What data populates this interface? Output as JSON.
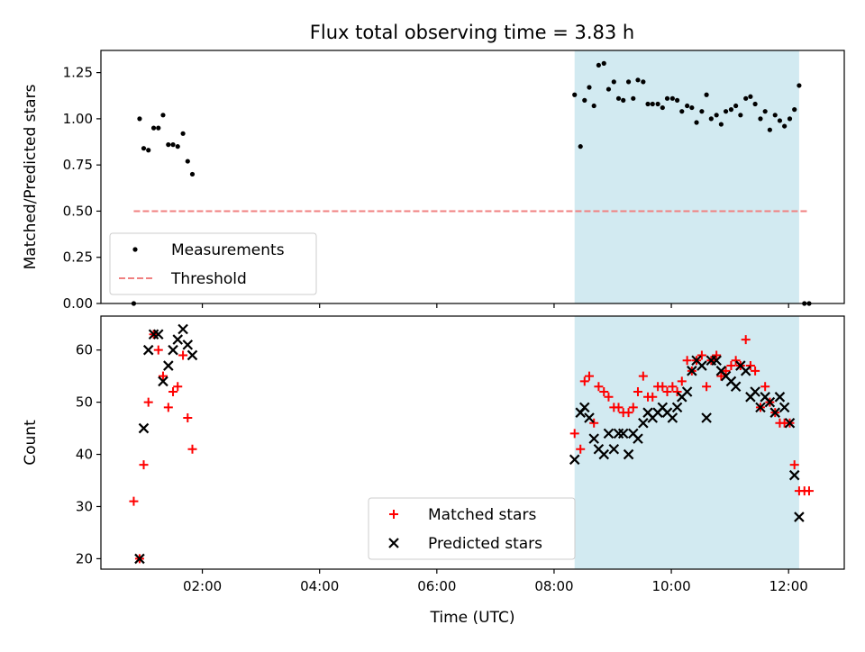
{
  "chart_data": [
    {
      "type": "scatter",
      "title": "Flux total observing time = 3.83 h",
      "xlabel": "",
      "ylabel": "Matched/Predicted stars",
      "x_unit": "hours UTC",
      "xlim": [
        0.27,
        12.95
      ],
      "ylim": [
        0,
        1.37
      ],
      "y_ticks": [
        "0.00",
        "0.25",
        "0.50",
        "0.75",
        "1.00",
        "1.25"
      ],
      "legend_position": "lower-left",
      "shaded_interval": {
        "x": [
          8.35,
          12.18
        ],
        "color": "#add8e6"
      },
      "series": [
        {
          "name": "Measurements",
          "color": "#000000",
          "marker": "dot",
          "points": [
            [
              0.83,
              0.0
            ],
            [
              0.93,
              1.0
            ],
            [
              1.0,
              0.84
            ],
            [
              1.08,
              0.83
            ],
            [
              1.17,
              0.95
            ],
            [
              1.25,
              0.95
            ],
            [
              1.33,
              1.02
            ],
            [
              1.42,
              0.86
            ],
            [
              1.5,
              0.86
            ],
            [
              1.58,
              0.85
            ],
            [
              1.67,
              0.92
            ],
            [
              1.75,
              0.77
            ],
            [
              1.83,
              0.7
            ],
            [
              8.35,
              1.13
            ],
            [
              8.45,
              0.85
            ],
            [
              8.52,
              1.1
            ],
            [
              8.6,
              1.17
            ],
            [
              8.68,
              1.07
            ],
            [
              8.76,
              1.29
            ],
            [
              8.85,
              1.3
            ],
            [
              8.93,
              1.16
            ],
            [
              9.02,
              1.2
            ],
            [
              9.1,
              1.11
            ],
            [
              9.18,
              1.1
            ],
            [
              9.27,
              1.2
            ],
            [
              9.35,
              1.11
            ],
            [
              9.43,
              1.21
            ],
            [
              9.52,
              1.2
            ],
            [
              9.6,
              1.08
            ],
            [
              9.68,
              1.08
            ],
            [
              9.77,
              1.08
            ],
            [
              9.85,
              1.06
            ],
            [
              9.93,
              1.11
            ],
            [
              10.02,
              1.11
            ],
            [
              10.1,
              1.1
            ],
            [
              10.18,
              1.04
            ],
            [
              10.27,
              1.07
            ],
            [
              10.35,
              1.06
            ],
            [
              10.43,
              0.98
            ],
            [
              10.52,
              1.04
            ],
            [
              10.6,
              1.13
            ],
            [
              10.68,
              1.0
            ],
            [
              10.77,
              1.02
            ],
            [
              10.85,
              0.97
            ],
            [
              10.93,
              1.04
            ],
            [
              11.02,
              1.05
            ],
            [
              11.1,
              1.07
            ],
            [
              11.18,
              1.02
            ],
            [
              11.27,
              1.11
            ],
            [
              11.35,
              1.12
            ],
            [
              11.43,
              1.08
            ],
            [
              11.52,
              1.0
            ],
            [
              11.6,
              1.04
            ],
            [
              11.68,
              0.94
            ],
            [
              11.77,
              1.02
            ],
            [
              11.85,
              0.99
            ],
            [
              11.93,
              0.96
            ],
            [
              12.02,
              1.0
            ],
            [
              12.1,
              1.05
            ],
            [
              12.18,
              1.18
            ],
            [
              12.27,
              0.0
            ],
            [
              12.35,
              0.0
            ]
          ]
        },
        {
          "name": "Threshold",
          "color": "#f08080",
          "style": "dashed",
          "points": [
            [
              0.83,
              0.5
            ],
            [
              12.35,
              0.5
            ]
          ]
        }
      ]
    },
    {
      "type": "scatter",
      "title": "",
      "xlabel": "Time (UTC)",
      "ylabel": "Count",
      "x_unit": "hours UTC",
      "xlim": [
        0.27,
        12.95
      ],
      "ylim": [
        18,
        66.5
      ],
      "x_ticks": [
        {
          "value": 2,
          "label": "02:00"
        },
        {
          "value": 4,
          "label": "04:00"
        },
        {
          "value": 6,
          "label": "06:00"
        },
        {
          "value": 8,
          "label": "08:00"
        },
        {
          "value": 10,
          "label": "10:00"
        },
        {
          "value": 12,
          "label": "12:00"
        }
      ],
      "y_ticks": [
        "20",
        "30",
        "40",
        "50",
        "60"
      ],
      "legend_position": "lower-center",
      "shaded_interval": {
        "x": [
          8.35,
          12.18
        ],
        "color": "#add8e6"
      },
      "series": [
        {
          "name": "Matched stars",
          "color": "#ff0000",
          "marker": "plus",
          "points": [
            [
              0.83,
              31
            ],
            [
              0.93,
              20
            ],
            [
              1.0,
              38
            ],
            [
              1.08,
              50
            ],
            [
              1.17,
              63
            ],
            [
              1.25,
              60
            ],
            [
              1.33,
              55
            ],
            [
              1.42,
              49
            ],
            [
              1.5,
              52
            ],
            [
              1.58,
              53
            ],
            [
              1.67,
              59
            ],
            [
              1.75,
              47
            ],
            [
              1.83,
              41
            ],
            [
              8.35,
              44
            ],
            [
              8.45,
              41
            ],
            [
              8.52,
              54
            ],
            [
              8.6,
              55
            ],
            [
              8.68,
              46
            ],
            [
              8.76,
              53
            ],
            [
              8.85,
              52
            ],
            [
              8.93,
              51
            ],
            [
              9.02,
              49
            ],
            [
              9.1,
              49
            ],
            [
              9.18,
              48
            ],
            [
              9.27,
              48
            ],
            [
              9.35,
              49
            ],
            [
              9.43,
              52
            ],
            [
              9.52,
              55
            ],
            [
              9.6,
              51
            ],
            [
              9.68,
              51
            ],
            [
              9.77,
              53
            ],
            [
              9.85,
              53
            ],
            [
              9.93,
              52
            ],
            [
              10.02,
              53
            ],
            [
              10.1,
              52
            ],
            [
              10.18,
              54
            ],
            [
              10.27,
              58
            ],
            [
              10.35,
              56
            ],
            [
              10.43,
              58
            ],
            [
              10.52,
              59
            ],
            [
              10.6,
              53
            ],
            [
              10.68,
              58
            ],
            [
              10.77,
              59
            ],
            [
              10.85,
              55
            ],
            [
              10.93,
              56
            ],
            [
              11.02,
              57
            ],
            [
              11.1,
              58
            ],
            [
              11.18,
              57
            ],
            [
              11.27,
              62
            ],
            [
              11.35,
              57
            ],
            [
              11.43,
              56
            ],
            [
              11.52,
              49
            ],
            [
              11.6,
              53
            ],
            [
              11.68,
              50
            ],
            [
              11.77,
              48
            ],
            [
              11.85,
              46
            ],
            [
              11.93,
              46
            ],
            [
              12.02,
              46
            ],
            [
              12.1,
              38
            ],
            [
              12.18,
              33
            ],
            [
              12.27,
              33
            ],
            [
              12.35,
              33
            ]
          ]
        },
        {
          "name": "Predicted stars",
          "color": "#000000",
          "marker": "x",
          "points": [
            [
              0.93,
              20
            ],
            [
              1.0,
              45
            ],
            [
              1.08,
              60
            ],
            [
              1.17,
              63
            ],
            [
              1.25,
              63
            ],
            [
              1.33,
              54
            ],
            [
              1.42,
              57
            ],
            [
              1.5,
              60
            ],
            [
              1.58,
              62
            ],
            [
              1.67,
              64
            ],
            [
              1.75,
              61
            ],
            [
              1.83,
              59
            ],
            [
              8.35,
              39
            ],
            [
              8.45,
              48
            ],
            [
              8.52,
              49
            ],
            [
              8.6,
              47
            ],
            [
              8.68,
              43
            ],
            [
              8.76,
              41
            ],
            [
              8.85,
              40
            ],
            [
              8.93,
              44
            ],
            [
              9.02,
              41
            ],
            [
              9.1,
              44
            ],
            [
              9.18,
              44
            ],
            [
              9.27,
              40
            ],
            [
              9.35,
              44
            ],
            [
              9.43,
              43
            ],
            [
              9.52,
              46
            ],
            [
              9.6,
              48
            ],
            [
              9.68,
              47
            ],
            [
              9.77,
              48
            ],
            [
              9.85,
              49
            ],
            [
              9.93,
              48
            ],
            [
              10.02,
              47
            ],
            [
              10.1,
              49
            ],
            [
              10.18,
              51
            ],
            [
              10.27,
              52
            ],
            [
              10.35,
              56
            ],
            [
              10.43,
              58
            ],
            [
              10.52,
              57
            ],
            [
              10.6,
              47
            ],
            [
              10.68,
              58
            ],
            [
              10.77,
              58
            ],
            [
              10.85,
              56
            ],
            [
              10.93,
              55
            ],
            [
              11.02,
              54
            ],
            [
              11.1,
              53
            ],
            [
              11.18,
              57
            ],
            [
              11.27,
              56
            ],
            [
              11.35,
              51
            ],
            [
              11.43,
              52
            ],
            [
              11.52,
              49
            ],
            [
              11.6,
              51
            ],
            [
              11.68,
              50
            ],
            [
              11.77,
              48
            ],
            [
              11.85,
              51
            ],
            [
              11.93,
              49
            ],
            [
              12.02,
              46
            ],
            [
              12.1,
              36
            ],
            [
              12.18,
              28
            ]
          ]
        }
      ]
    }
  ]
}
